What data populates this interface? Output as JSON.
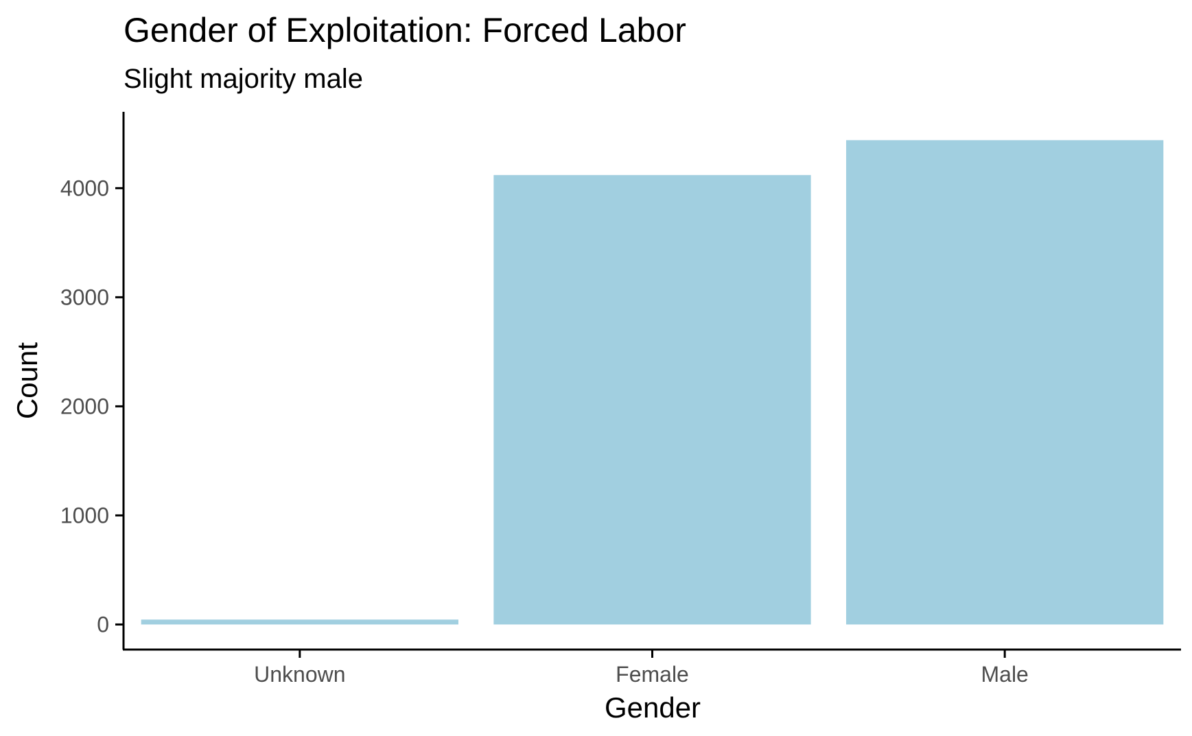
{
  "chart_data": {
    "type": "bar",
    "title": "Gender of Exploitation:  Forced Labor",
    "subtitle": "Slight majority male",
    "xlabel": "Gender",
    "ylabel": "Count",
    "categories": [
      "Unknown",
      "Female",
      "Male"
    ],
    "values": [
      45,
      4120,
      4440
    ],
    "ylim": [
      -230,
      4700
    ],
    "yticks": [
      0,
      1000,
      2000,
      3000,
      4000
    ],
    "grid": false,
    "bar_color": "#a1cfe0",
    "axis_color": "#000000",
    "tick_label_color": "#4d4d4d"
  }
}
